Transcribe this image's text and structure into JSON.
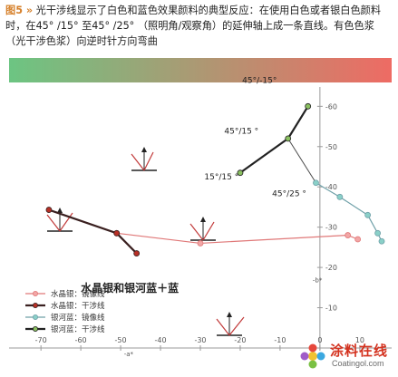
{
  "caption": {
    "fig_label": "图5 »",
    "text": " 光干涉线显示了白色和蓝色效果颜料的典型反应：在使用白色或者银白色颜料时，在45° /15° 至45° /25° （照明角/观察角）的延伸轴上成一条直线。有色色浆（光干涉色浆）向逆时针方向弯曲"
  },
  "watermark": {
    "cn": "涂料在线",
    "en": "Coatingol.com"
  },
  "chart_data": {
    "type": "line",
    "x_axis": {
      "label": "-a*",
      "range": [
        -78,
        18
      ],
      "ticks": [
        -70,
        -60,
        -50,
        -40,
        -30,
        -20,
        -10,
        0,
        10
      ]
    },
    "y_axis": {
      "label": "-b*",
      "range": [
        -63,
        0
      ],
      "ticks": [
        -10,
        -20,
        -30,
        -40,
        -50,
        -60
      ]
    },
    "gradient_bar": {
      "left_color": "#6cc582",
      "right_color": "#ee6b64"
    },
    "series": [
      {
        "name": "水晶银：镜像线",
        "color": "#e07878",
        "marker_fill": "#f2a6a6",
        "width": 1.2,
        "points": [
          [
            -51,
            -28.5
          ],
          [
            -30,
            -26
          ],
          [
            7,
            -28
          ],
          [
            9.5,
            -27
          ]
        ]
      },
      {
        "name": "水晶银：干涉线",
        "color": "#3a2020",
        "marker_fill": "#b83026",
        "width": 2.2,
        "points": [
          [
            -68,
            -34.3
          ],
          [
            -51,
            -28.5
          ],
          [
            -46,
            -23.5
          ]
        ]
      },
      {
        "name": "银河蓝：镜像线",
        "color": "#6fa0a8",
        "marker_fill": "#8ad0c8",
        "width": 1.2,
        "points": [
          [
            -1,
            -41
          ],
          [
            5,
            -37.5
          ],
          [
            12,
            -33
          ],
          [
            14.5,
            -28.5
          ],
          [
            15.5,
            -26.5
          ]
        ]
      },
      {
        "name": "银河蓝：干涉线",
        "color": "#222222",
        "marker_fill": "#8ac060",
        "width": 2.2,
        "points": [
          [
            -20,
            -43.5
          ],
          [
            -8,
            -52
          ],
          [
            -3,
            -60
          ]
        ]
      }
    ],
    "connector": {
      "color": "#4a4a4a",
      "points": [
        [
          -8,
          -52
        ],
        [
          -1,
          -41
        ]
      ]
    },
    "annotations": [
      {
        "text": "水晶银和银河蓝＋蓝",
        "x": -60,
        "y": -14,
        "bold": true,
        "size": 12
      },
      {
        "text": "15°/15  °",
        "x": -29,
        "y": -41.8,
        "size": 9
      },
      {
        "text": "45°/25  °",
        "x": -12,
        "y": -37.7,
        "size": 9
      },
      {
        "text": "45°/15  °",
        "x": -24,
        "y": -53.2,
        "size": 9
      },
      {
        "text": "45°/-15°",
        "x": -19.5,
        "y": -65.8,
        "size": 9
      }
    ],
    "legend_position": "bottom-left"
  }
}
